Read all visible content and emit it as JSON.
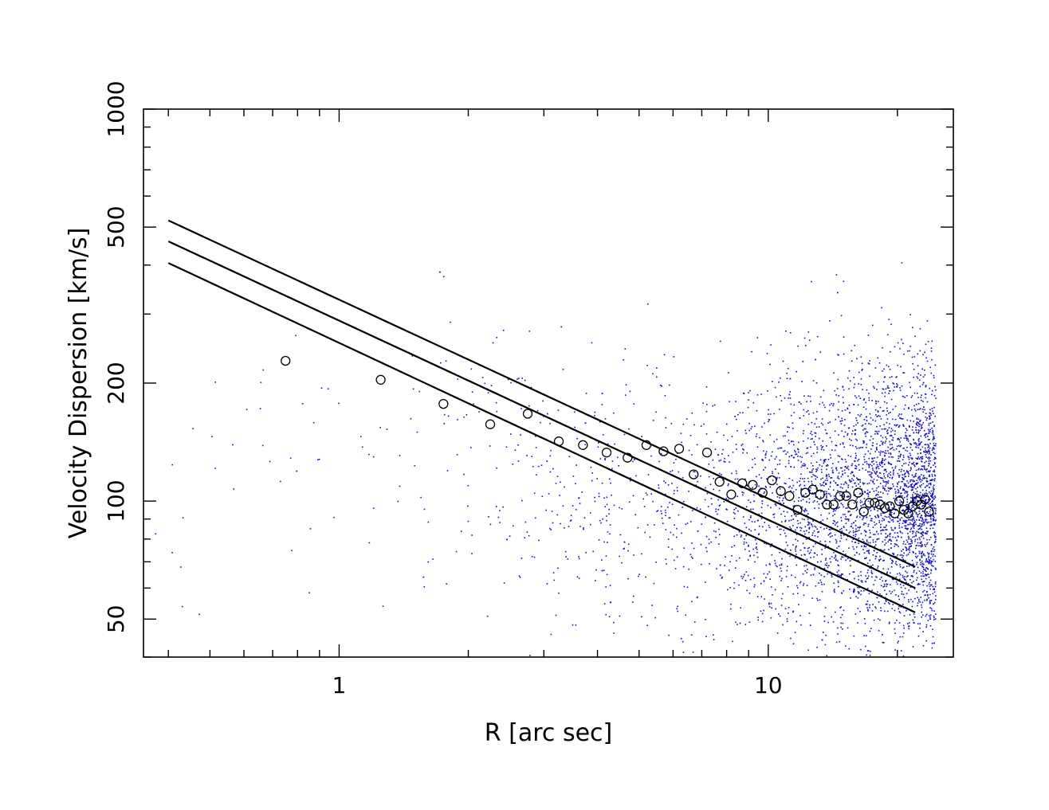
{
  "chart_data": {
    "type": "scatter",
    "x_scale": "log",
    "y_scale": "log",
    "xlabel": "R [arc sec]",
    "ylabel": "Velocity Dispersion [km/s]",
    "xlim": [
      0.35,
      27
    ],
    "ylim": [
      40,
      1000
    ],
    "x_ticks": [
      1,
      10
    ],
    "x_tick_labels": [
      "1",
      "10"
    ],
    "y_ticks": [
      50,
      100,
      200,
      500,
      1000
    ],
    "y_tick_labels": [
      "50",
      "100",
      "200",
      "500",
      "1000"
    ],
    "series": [
      {
        "marker": "open-circle",
        "color": "#000000",
        "x": [
          0.75,
          1.25,
          1.75,
          2.25,
          2.75,
          3.25,
          3.7,
          4.2,
          4.7,
          5.2,
          5.7,
          6.2,
          6.7,
          7.2,
          7.7,
          8.2,
          8.7,
          9.2,
          9.7,
          10.2,
          10.7,
          11.2,
          11.7,
          12.2,
          12.7,
          13.2,
          13.7,
          14.2,
          14.7,
          15.2,
          15.7,
          16.2,
          16.7,
          17.2,
          17.7,
          18.2,
          18.7,
          19.2,
          19.7,
          20.2,
          20.7,
          21.2,
          21.7,
          22.2,
          22.7,
          23.2,
          23.7
        ],
        "y": [
          228,
          204,
          177,
          157,
          167,
          142,
          139,
          133,
          129,
          139,
          134,
          136,
          117,
          133,
          112,
          104,
          111,
          110,
          105,
          113,
          106,
          103,
          95,
          105,
          107,
          104,
          98,
          98,
          103,
          103,
          98,
          105,
          94,
          99,
          99,
          98,
          96,
          97,
          93,
          100,
          95,
          93,
          97,
          100,
          98,
          101,
          94
        ]
      }
    ],
    "lines": [
      {
        "x": [
          0.4,
          22
        ],
        "y": [
          520,
          68
        ]
      },
      {
        "x": [
          0.4,
          22
        ],
        "y": [
          460,
          60
        ]
      },
      {
        "x": [
          0.4,
          22
        ],
        "y": [
          405,
          52
        ]
      }
    ],
    "background_scatter": {
      "color": "#1010c8",
      "marker": "small-dot",
      "x_range": [
        0.35,
        25
      ],
      "y_range": [
        40,
        700
      ]
    }
  }
}
